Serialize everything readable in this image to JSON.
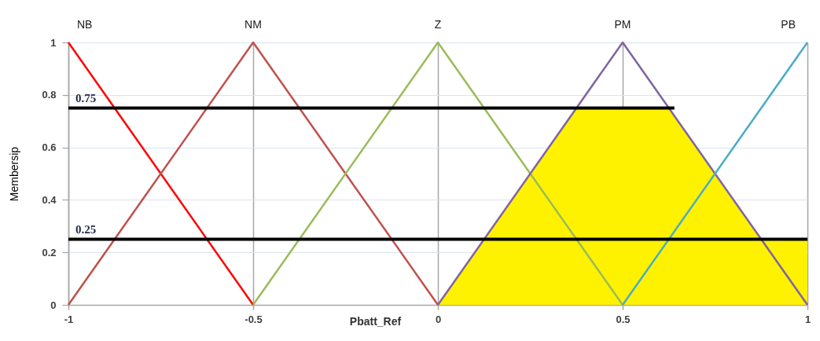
{
  "chart_data": {
    "type": "line",
    "xlabel": "Pbatt_Ref",
    "ylabel": "Membersip",
    "xlim": [
      -1,
      1
    ],
    "xticks": [
      -1,
      -0.5,
      0,
      0.5,
      1
    ],
    "ylim": [
      0,
      1
    ],
    "yticks": [
      0,
      0.2,
      0.4,
      0.6,
      0.8,
      1
    ],
    "grid": true,
    "series": [
      {
        "type": "area",
        "color": "#fff200",
        "x": [
          0,
          0.375,
          0.625,
          0.875,
          1
        ],
        "values": [
          0,
          0.75,
          0.75,
          0.25,
          0.25
        ]
      },
      {
        "name": "NB",
        "color": "#ff0000",
        "x": [
          -1,
          -0.5
        ],
        "values": [
          1,
          0
        ]
      },
      {
        "name": "NM",
        "color": "#c0504d",
        "x": [
          -1,
          -0.5,
          0
        ],
        "values": [
          0,
          1,
          0
        ]
      },
      {
        "name": "Z",
        "color": "#9bbb59",
        "x": [
          -0.5,
          0,
          0.5
        ],
        "values": [
          0,
          1,
          0
        ]
      },
      {
        "name": "PM",
        "color": "#8064a2",
        "x": [
          0,
          0.5,
          1
        ],
        "values": [
          0,
          1,
          0
        ]
      },
      {
        "name": "PB",
        "color": "#4bacc6",
        "x": [
          0.5,
          1
        ],
        "values": [
          0,
          1
        ]
      },
      {
        "color": "#000000",
        "x": [
          -1,
          0.64
        ],
        "values": [
          0.75,
          0.75
        ]
      },
      {
        "color": "#000000",
        "x": [
          -1,
          1
        ],
        "values": [
          0.25,
          0.25
        ]
      }
    ],
    "annotations": [
      {
        "text": "0.75",
        "x": -1,
        "y": 0.75
      },
      {
        "text": "0.25",
        "x": -1,
        "y": 0.25
      }
    ]
  }
}
